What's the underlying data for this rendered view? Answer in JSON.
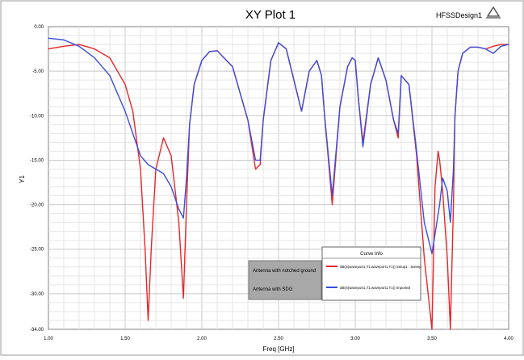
{
  "chart_data": {
    "type": "line",
    "title": "XY Plot 1",
    "design_label": "HFSSDesign1",
    "xlabel": "Freq [GHz]",
    "ylabel": "Y1",
    "xlim": [
      1.0,
      4.0
    ],
    "ylim": [
      -34.0,
      0.0
    ],
    "x_ticks": [
      "1.00",
      "1.50",
      "2.00",
      "2.50",
      "3.00",
      "3.50",
      "4.00"
    ],
    "y_ticks": [
      "0.00",
      "-5.00",
      "-10.00",
      "-15.00",
      "-20.00",
      "-25.00",
      "-30.00",
      "-34.00"
    ],
    "grid": true,
    "legend": {
      "title": "Curve Info",
      "placement": "bottom-right",
      "entries": [
        "dB(S(waveport1,T1,waveport1,T1)) Setup1 : Sweep",
        "dB(S(waveport1,T1,waveport1,T1)) Imported"
      ]
    },
    "annotations": [
      "Antenna with notched ground",
      "Antenna with SDG"
    ],
    "series": [
      {
        "color": "#e8262a",
        "x": [
          1.0,
          1.1,
          1.2,
          1.3,
          1.4,
          1.5,
          1.55,
          1.6,
          1.63,
          1.65,
          1.67,
          1.7,
          1.75,
          1.8,
          1.85,
          1.88,
          1.9,
          1.92,
          1.95,
          2.0,
          2.05,
          2.1,
          2.2,
          2.3,
          2.35,
          2.38,
          2.4,
          2.45,
          2.5,
          2.55,
          2.6,
          2.65,
          2.7,
          2.75,
          2.78,
          2.8,
          2.85,
          2.9,
          2.95,
          2.98,
          3.0,
          3.02,
          3.05,
          3.1,
          3.15,
          3.2,
          3.25,
          3.28,
          3.3,
          3.35,
          3.4,
          3.45,
          3.5,
          3.52,
          3.54,
          3.55,
          3.57,
          3.6,
          3.62,
          3.64,
          3.65,
          3.67,
          3.7,
          3.75,
          3.8,
          3.85,
          3.9,
          3.95,
          4.0
        ],
        "y": [
          -2.5,
          -2.2,
          -2.0,
          -2.5,
          -3.5,
          -6.5,
          -9.5,
          -16.0,
          -25.0,
          -33.0,
          -25.0,
          -16.0,
          -12.5,
          -14.5,
          -22.0,
          -30.5,
          -20.0,
          -11.0,
          -6.5,
          -3.8,
          -2.8,
          -2.7,
          -4.5,
          -10.5,
          -16.0,
          -15.5,
          -10.5,
          -3.8,
          -1.8,
          -2.5,
          -6.0,
          -9.5,
          -5.0,
          -3.8,
          -5.5,
          -10.0,
          -20.0,
          -9.0,
          -4.5,
          -3.5,
          -3.8,
          -8.0,
          -13.0,
          -6.5,
          -3.5,
          -6.0,
          -10.5,
          -12.5,
          -5.5,
          -6.5,
          -14.5,
          -26.0,
          -34.0,
          -18.0,
          -14.0,
          -15.0,
          -18.5,
          -26.0,
          -34.0,
          -20.0,
          -10.0,
          -5.0,
          -3.0,
          -2.3,
          -2.3,
          -2.5,
          -2.2,
          -2.0,
          -2.0
        ]
      },
      {
        "color": "#3a4ee0",
        "x": [
          1.0,
          1.1,
          1.2,
          1.3,
          1.4,
          1.5,
          1.55,
          1.6,
          1.65,
          1.7,
          1.75,
          1.8,
          1.85,
          1.88,
          1.9,
          1.92,
          1.95,
          2.0,
          2.05,
          2.1,
          2.2,
          2.3,
          2.35,
          2.38,
          2.4,
          2.45,
          2.5,
          2.55,
          2.6,
          2.65,
          2.7,
          2.75,
          2.78,
          2.8,
          2.85,
          2.9,
          2.95,
          2.98,
          3.0,
          3.02,
          3.05,
          3.1,
          3.15,
          3.2,
          3.25,
          3.28,
          3.3,
          3.35,
          3.4,
          3.45,
          3.5,
          3.55,
          3.57,
          3.6,
          3.62,
          3.64,
          3.65,
          3.67,
          3.7,
          3.75,
          3.8,
          3.85,
          3.9,
          3.95,
          4.0
        ],
        "y": [
          -1.3,
          -1.5,
          -2.2,
          -3.5,
          -5.5,
          -9.5,
          -12.0,
          -14.5,
          -15.5,
          -16.0,
          -16.5,
          -18.0,
          -20.5,
          -21.5,
          -17.0,
          -11.0,
          -6.5,
          -3.8,
          -2.8,
          -2.7,
          -4.5,
          -10.5,
          -15.0,
          -15.0,
          -10.5,
          -3.8,
          -1.8,
          -2.5,
          -6.0,
          -9.5,
          -5.0,
          -3.8,
          -5.5,
          -10.0,
          -19.0,
          -9.0,
          -4.5,
          -3.5,
          -3.8,
          -8.0,
          -13.5,
          -6.5,
          -3.5,
          -6.0,
          -10.5,
          -12.0,
          -5.5,
          -6.5,
          -14.0,
          -22.0,
          -25.5,
          -20.0,
          -17.0,
          -18.5,
          -22.0,
          -16.0,
          -10.0,
          -5.0,
          -3.0,
          -2.3,
          -2.3,
          -2.5,
          -3.0,
          -2.2,
          -2.0
        ]
      }
    ]
  }
}
